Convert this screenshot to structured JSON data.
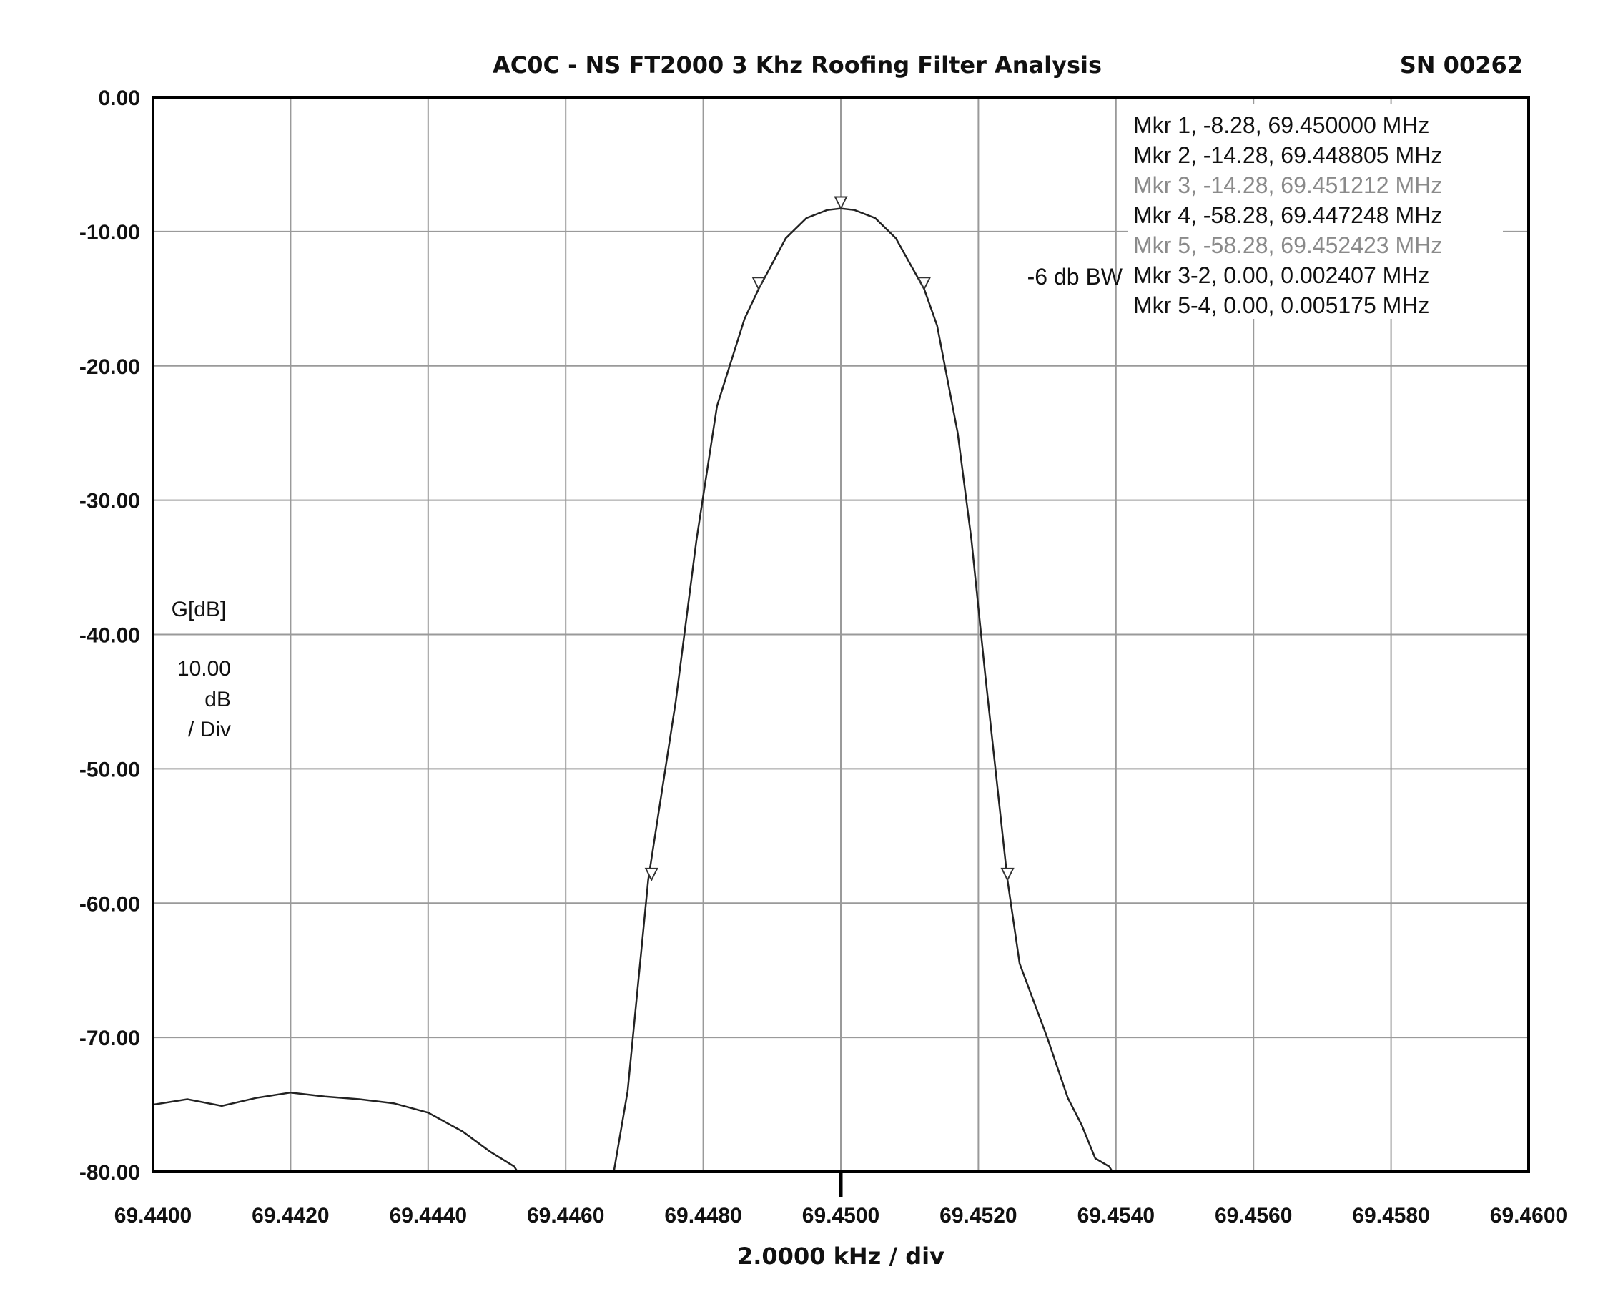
{
  "chart_data": {
    "type": "line",
    "title": "AC0C - NS FT2000 3 Khz Roofing Filter Analysis",
    "serial": "SN 00262",
    "xlabel": "2.0000 kHz / div",
    "ylabel": "G[dB]",
    "yscale_lines": [
      "10.00",
      "dB",
      "/ Div"
    ],
    "xlim": [
      69.44,
      69.46
    ],
    "ylim": [
      -80,
      0
    ],
    "grid": true,
    "x_ticks": [
      "69.4400",
      "69.4420",
      "69.4440",
      "69.4460",
      "69.4480",
      "69.4500",
      "69.4520",
      "69.4540",
      "69.4560",
      "69.4580",
      "69.4600"
    ],
    "y_ticks": [
      "0.00",
      "-10.00",
      "-20.00",
      "-30.00",
      "-40.00",
      "-50.00",
      "-60.00",
      "-70.00",
      "-80.00"
    ],
    "center_x": 69.45,
    "series": [
      {
        "points": [
          [
            69.44,
            -75.0
          ],
          [
            69.4405,
            -74.6
          ],
          [
            69.441,
            -75.1
          ],
          [
            69.4415,
            -74.5
          ],
          [
            69.442,
            -74.1
          ],
          [
            69.4425,
            -74.4
          ],
          [
            69.443,
            -74.6
          ],
          [
            69.4435,
            -74.9
          ],
          [
            69.444,
            -75.6
          ],
          [
            69.4445,
            -77.0
          ],
          [
            69.4449,
            -78.5
          ],
          [
            69.44525,
            -79.6
          ],
          [
            69.4453,
            -80.0
          ],
          [
            69.4467,
            -80.0
          ],
          [
            69.4469,
            -74.0
          ],
          [
            69.4472,
            -58.28
          ],
          [
            69.4476,
            -45.0
          ],
          [
            69.4479,
            -33.0
          ],
          [
            69.4482,
            -23.0
          ],
          [
            69.4486,
            -16.5
          ],
          [
            69.448805,
            -14.28
          ],
          [
            69.4492,
            -10.5
          ],
          [
            69.4495,
            -9.0
          ],
          [
            69.4498,
            -8.4
          ],
          [
            69.45,
            -8.28
          ],
          [
            69.4502,
            -8.4
          ],
          [
            69.4505,
            -9.0
          ],
          [
            69.4508,
            -10.5
          ],
          [
            69.451212,
            -14.28
          ],
          [
            69.4514,
            -17.0
          ],
          [
            69.4517,
            -25.0
          ],
          [
            69.4519,
            -33.0
          ],
          [
            69.4521,
            -43.0
          ],
          [
            69.452423,
            -58.28
          ],
          [
            69.4526,
            -64.5
          ],
          [
            69.453,
            -70.0
          ],
          [
            69.4533,
            -74.5
          ],
          [
            69.4535,
            -76.5
          ],
          [
            69.4537,
            -79.0
          ],
          [
            69.4539,
            -79.6
          ],
          [
            69.45395,
            -80.0
          ],
          [
            69.46,
            -80.0
          ]
        ]
      }
    ],
    "markers": [
      {
        "id": 1,
        "level": -8.28,
        "freq": 69.45
      },
      {
        "id": 2,
        "level": -14.28,
        "freq": 69.448805
      },
      {
        "id": 3,
        "level": -14.28,
        "freq": 69.451212
      },
      {
        "id": 4,
        "level": -58.28,
        "freq": 69.447248
      },
      {
        "id": 5,
        "level": -58.28,
        "freq": 69.452423
      }
    ],
    "marker_legend": [
      {
        "text": "Mkr 1, -8.28, 69.450000 MHz",
        "color": "#111111"
      },
      {
        "text": "Mkr 2, -14.28, 69.448805 MHz",
        "color": "#111111"
      },
      {
        "text": "Mkr 3, -14.28, 69.451212 MHz",
        "color": "#8a8a8a"
      },
      {
        "text": "Mkr 4, -58.28, 69.447248 MHz",
        "color": "#111111"
      },
      {
        "text": "Mkr 5, -58.28, 69.452423 MHz",
        "color": "#8a8a8a"
      },
      {
        "text": "Mkr 3-2, 0.00, 0.002407 MHz",
        "color": "#111111"
      },
      {
        "text": "Mkr 5-4, 0.00, 0.005175 MHz",
        "color": "#111111"
      }
    ],
    "bw_label": "-6 db BW",
    "colors": {
      "trace": "#222222",
      "grid": "#9a9a9a",
      "frame": "#000000",
      "background": "#ffffff"
    }
  }
}
